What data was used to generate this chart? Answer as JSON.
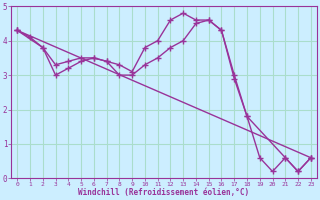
{
  "title": "",
  "xlabel": "Windchill (Refroidissement éolien,°C)",
  "ylabel": "",
  "bg_color": "#cceeff",
  "line_color": "#993399",
  "grid_color": "#aaddcc",
  "xlim": [
    -0.5,
    23.5
  ],
  "ylim": [
    0,
    5
  ],
  "xticks": [
    0,
    1,
    2,
    3,
    4,
    5,
    6,
    7,
    8,
    9,
    10,
    11,
    12,
    13,
    14,
    15,
    16,
    17,
    18,
    19,
    20,
    21,
    22,
    23
  ],
  "yticks": [
    0,
    1,
    2,
    3,
    4,
    5
  ],
  "series1_x": [
    0,
    1,
    2,
    3,
    4,
    5,
    6,
    7,
    8,
    9,
    10,
    11,
    12,
    13,
    14,
    15,
    16,
    17,
    18,
    19,
    20,
    21,
    22,
    23
  ],
  "series1_y": [
    4.3,
    4.1,
    3.8,
    3.3,
    3.4,
    3.5,
    3.5,
    3.4,
    3.3,
    3.1,
    3.8,
    4.0,
    4.6,
    4.8,
    4.6,
    4.6,
    4.3,
    3.0,
    1.8,
    0.6,
    0.2,
    0.6,
    0.2,
    0.6
  ],
  "series2_x": [
    0,
    2,
    3,
    4,
    5,
    6,
    7,
    8,
    9,
    10,
    11,
    12,
    13,
    14,
    15,
    16,
    17,
    18,
    21,
    22,
    23
  ],
  "series2_y": [
    4.3,
    3.8,
    3.0,
    3.2,
    3.4,
    3.5,
    3.4,
    3.0,
    3.0,
    3.3,
    3.5,
    3.8,
    4.0,
    4.5,
    4.6,
    4.3,
    2.9,
    1.8,
    0.6,
    0.2,
    0.6
  ],
  "series3_x": [
    0,
    23
  ],
  "series3_y": [
    4.3,
    0.6
  ],
  "marker": "+",
  "markersize": 4,
  "linewidth": 1.0
}
